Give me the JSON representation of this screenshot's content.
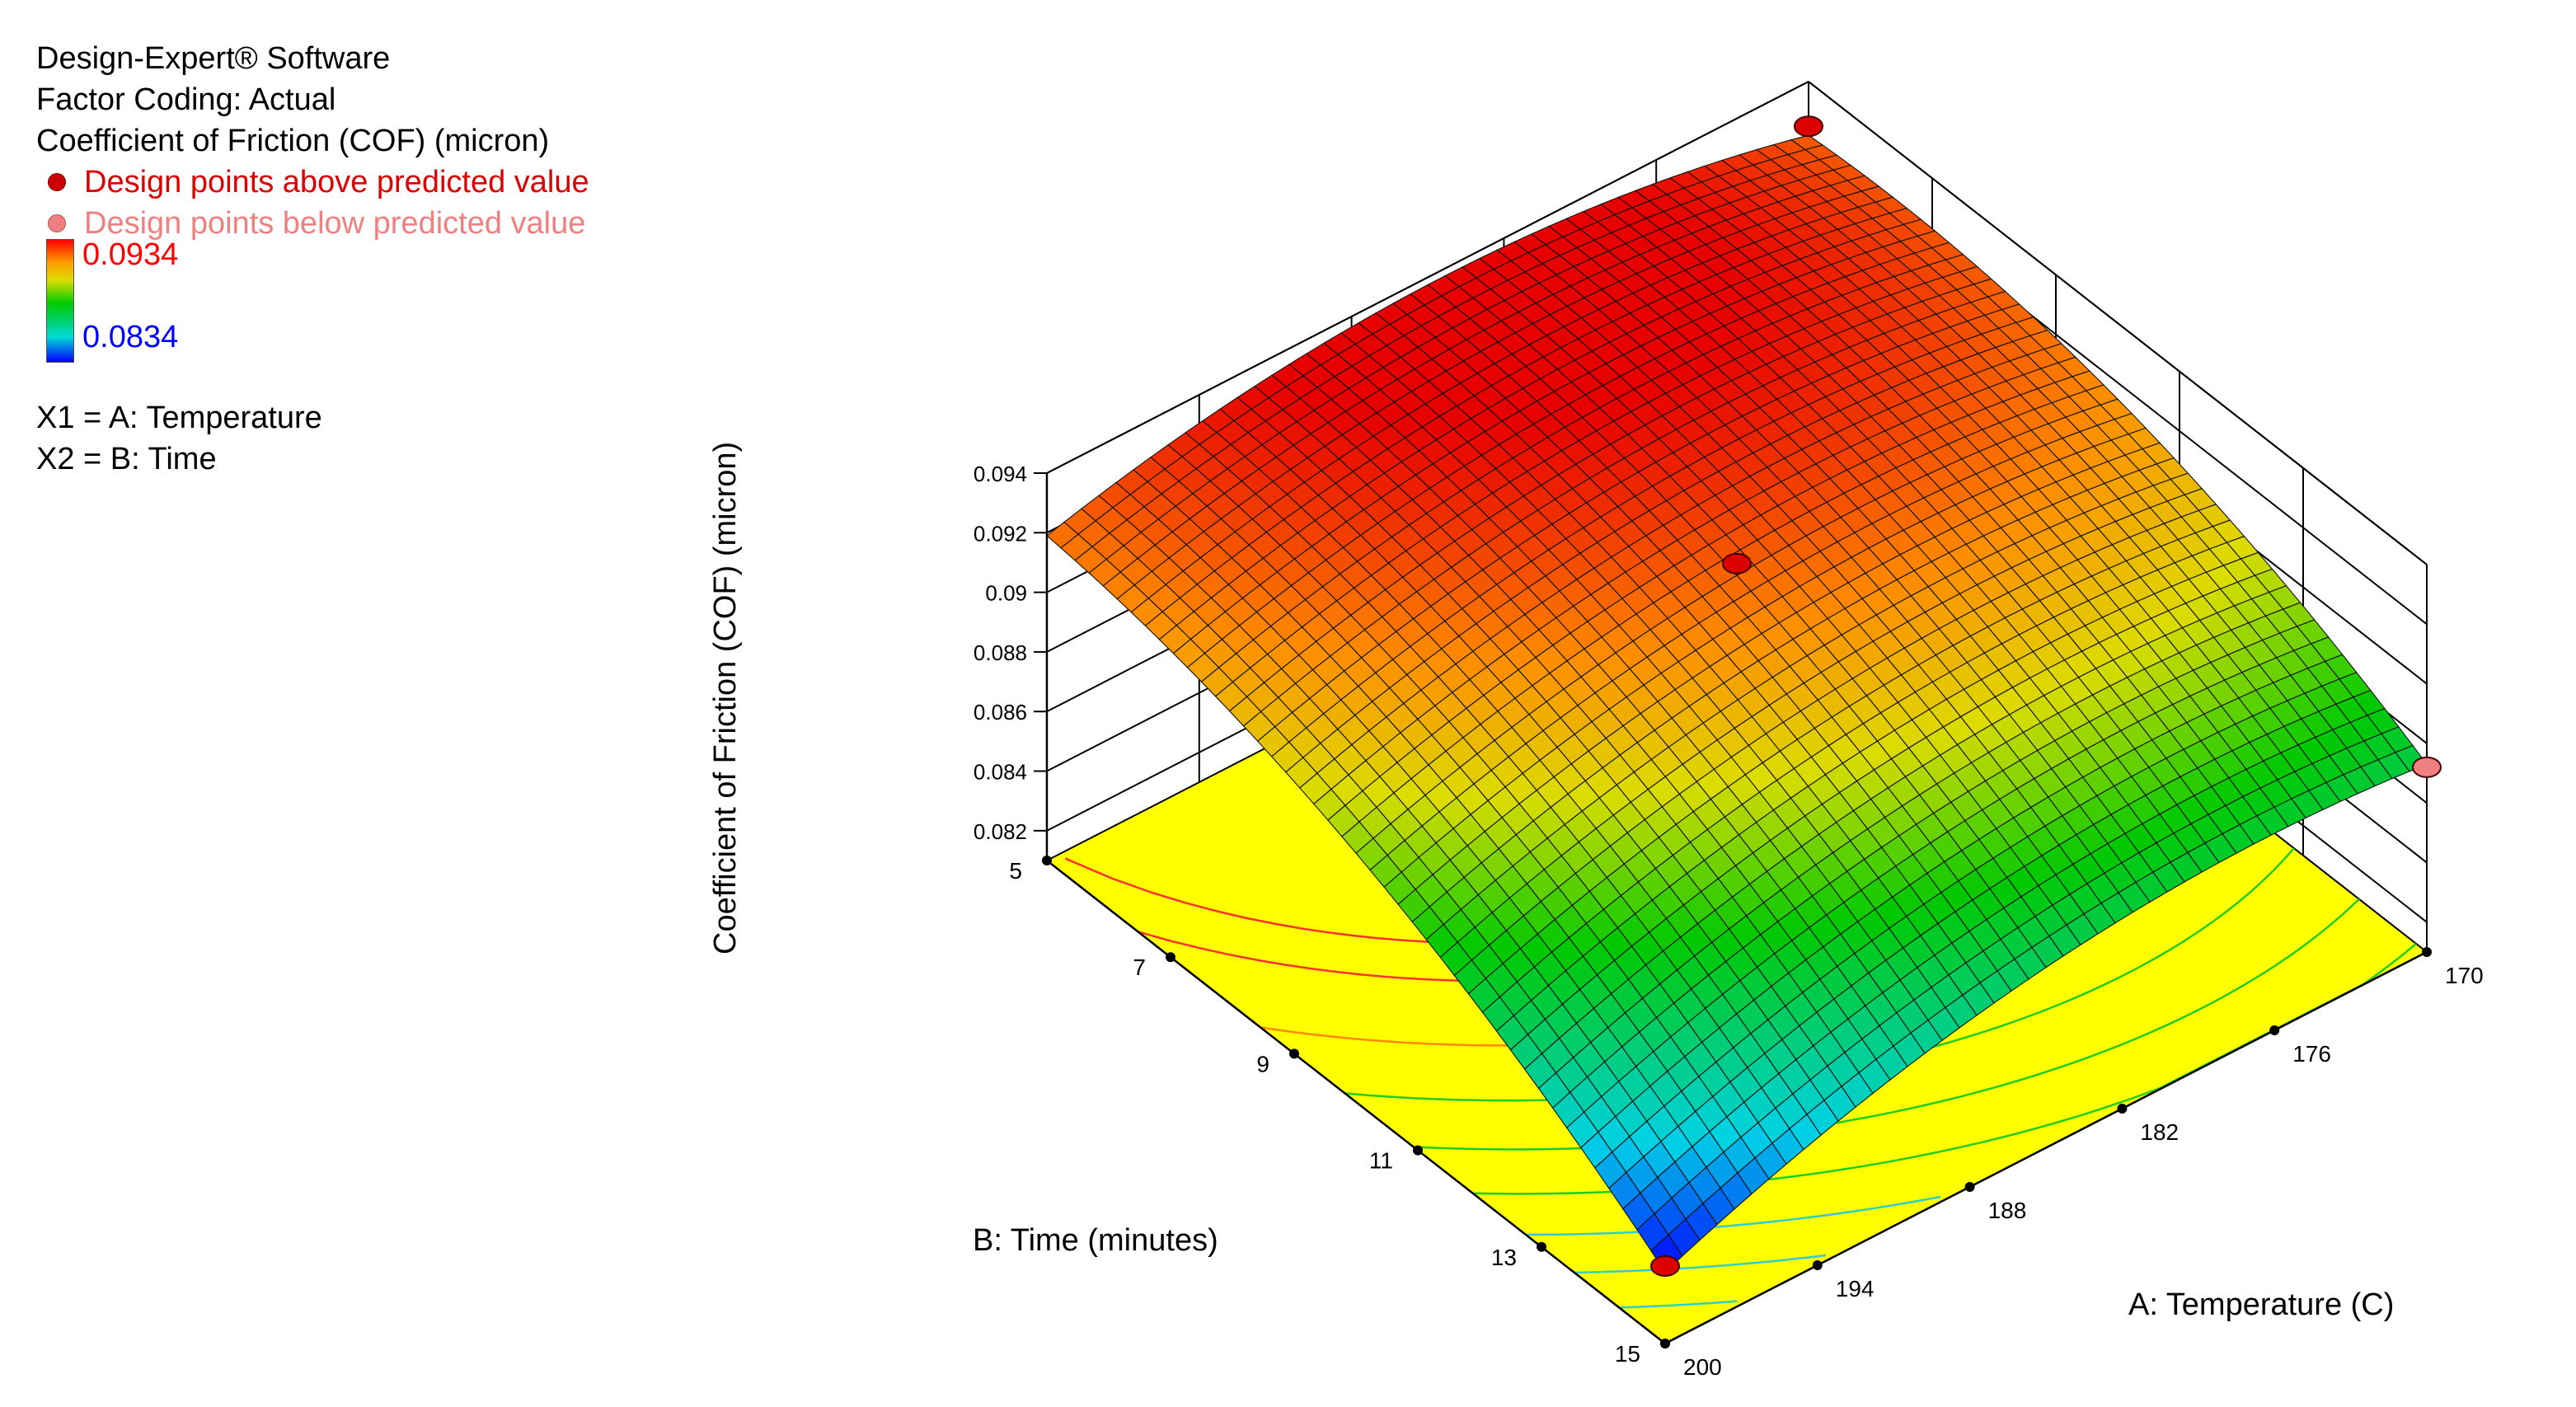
{
  "legend": {
    "software": "Design-Expert® Software",
    "factor_coding": "Factor Coding: Actual",
    "response": "Coefficient of Friction (COF) (micron)",
    "points_above": "Design points above predicted value",
    "points_below": "Design points below predicted value",
    "colorbar_max": "0.0934",
    "colorbar_min": "0.0834",
    "x1": "X1 = A: Temperature",
    "x2": "X2 = B: Time"
  },
  "colors": {
    "above": "#dd0000",
    "below": "#f08080",
    "cb_max": "#ff0000",
    "cb_min": "#0000ff",
    "contour_floor": "#ffff00"
  },
  "chart_data": {
    "type": "surface",
    "title": "",
    "xlabel": "A: Temperature (C)",
    "ylabel": "B: Time (minutes)",
    "zlabel": "Coefficient of Friction (COF) (micron)",
    "x_ticks": [
      "170",
      "176",
      "182",
      "188",
      "194",
      "200"
    ],
    "y_ticks": [
      "5",
      "7",
      "9",
      "11",
      "13",
      "15"
    ],
    "z_ticks": [
      "0.082",
      "0.084",
      "0.086",
      "0.088",
      "0.09",
      "0.092",
      "0.094"
    ],
    "xlim": [
      170,
      200
    ],
    "ylim": [
      5,
      15
    ],
    "zlim": [
      0.081,
      0.094
    ],
    "surface_min": 0.0834,
    "surface_max": 0.0934,
    "surface_corners": {
      "T170_t5": 0.0922,
      "T170_t15": 0.0873,
      "T200_t5": 0.0919,
      "T200_t15": 0.0834,
      "T185_t10": 0.0921
    },
    "design_points": [
      {
        "temperature": 170,
        "time": 5,
        "cof": 0.0925,
        "position": "above"
      },
      {
        "temperature": 185,
        "time": 10,
        "cof": 0.0925,
        "position": "above"
      },
      {
        "temperature": 170,
        "time": 15,
        "cof": 0.0872,
        "position": "below"
      },
      {
        "temperature": 200,
        "time": 15,
        "cof": 0.0836,
        "position": "above"
      }
    ],
    "grid": true,
    "floor_contours": true
  }
}
